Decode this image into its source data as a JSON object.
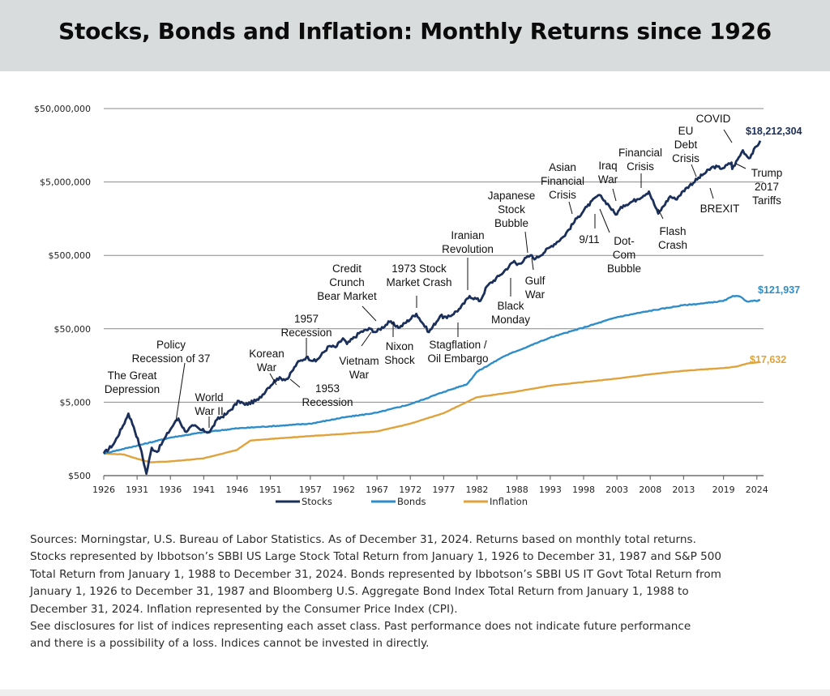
{
  "header": {
    "title": "Stocks, Bonds and Inflation: Monthly Returns since 1926"
  },
  "chart_data": {
    "type": "line",
    "scale": "log",
    "y_ticks": [
      500,
      5000,
      50000,
      500000,
      5000000,
      50000000
    ],
    "y_tick_labels": [
      "$500",
      "$5,000",
      "$50,000",
      "$500,000",
      "$5,000,000",
      "$50,000,000"
    ],
    "ylim": [
      500,
      50000000
    ],
    "x_ticks": [
      1926,
      1931,
      1936,
      1941,
      1946,
      1951,
      1957,
      1962,
      1967,
      1972,
      1977,
      1982,
      1988,
      1993,
      1998,
      2003,
      2008,
      2013,
      2019,
      2024
    ],
    "xlim": [
      1926,
      2025
    ],
    "grid": "horizontal",
    "legend_position": "bottom",
    "series": [
      {
        "name": "Stocks",
        "color": "#1b2f5b",
        "end_label": "$18,212,304",
        "points": [
          [
            1926,
            1000
          ],
          [
            1927.5,
            1350
          ],
          [
            1928.9,
            2400
          ],
          [
            1929.7,
            3500
          ],
          [
            1930.5,
            2300
          ],
          [
            1931.5,
            1200
          ],
          [
            1932.4,
            530
          ],
          [
            1933.2,
            1200
          ],
          [
            1934,
            1050
          ],
          [
            1935.3,
            1700
          ],
          [
            1936.6,
            2600
          ],
          [
            1937.2,
            3000
          ],
          [
            1938.2,
            2000
          ],
          [
            1939.5,
            2400
          ],
          [
            1940.5,
            2100
          ],
          [
            1941.9,
            1950
          ],
          [
            1943,
            2900
          ],
          [
            1944.5,
            3500
          ],
          [
            1946.3,
            5200
          ],
          [
            1947.2,
            4600
          ],
          [
            1949.2,
            5400
          ],
          [
            1950.5,
            7600
          ],
          [
            1952,
            10500
          ],
          [
            1953.6,
            10400
          ],
          [
            1955,
            17000
          ],
          [
            1956.4,
            20500
          ],
          [
            1957.8,
            18000
          ],
          [
            1959.8,
            29000
          ],
          [
            1960.8,
            28000
          ],
          [
            1961.9,
            37000
          ],
          [
            1962.5,
            31000
          ],
          [
            1964.5,
            45000
          ],
          [
            1966,
            50000
          ],
          [
            1966.8,
            45000
          ],
          [
            1968.9,
            62000
          ],
          [
            1970.4,
            52000
          ],
          [
            1972.9,
            80000
          ],
          [
            1974.8,
            45000
          ],
          [
            1976.5,
            75000
          ],
          [
            1977.5,
            70000
          ],
          [
            1979.5,
            95000
          ],
          [
            1980.9,
            140000
          ],
          [
            1982.5,
            120000
          ],
          [
            1983.5,
            190000
          ],
          [
            1985.5,
            270000
          ],
          [
            1987.6,
            420000
          ],
          [
            1988,
            370000
          ],
          [
            1990,
            500000
          ],
          [
            1990.8,
            450000
          ],
          [
            1993,
            650000
          ],
          [
            1995,
            900000
          ],
          [
            1997,
            1600000
          ],
          [
            1998.5,
            2300000
          ],
          [
            2000.2,
            3300000
          ],
          [
            2000.8,
            3000000
          ],
          [
            2001.8,
            2400000
          ],
          [
            2002.8,
            1800000
          ],
          [
            2004,
            2400000
          ],
          [
            2006,
            2900000
          ],
          [
            2007.8,
            3700000
          ],
          [
            2009.2,
            1850000
          ],
          [
            2011,
            3200000
          ],
          [
            2011.8,
            2900000
          ],
          [
            2013.5,
            4200000
          ],
          [
            2016,
            6400000
          ],
          [
            2017.5,
            8100000
          ],
          [
            2018.9,
            7700000
          ],
          [
            2020.2,
            9200000
          ],
          [
            2020.3,
            7500000
          ],
          [
            2021.9,
            13500000
          ],
          [
            2022.8,
            10500000
          ],
          [
            2024.5,
            18212304
          ]
        ]
      },
      {
        "name": "Bonds",
        "color": "#2e8dc8",
        "end_label": "$121,937",
        "points": [
          [
            1926,
            1000
          ],
          [
            1931,
            1280
          ],
          [
            1936,
            1650
          ],
          [
            1941,
            1950
          ],
          [
            1946,
            2200
          ],
          [
            1951,
            2350
          ],
          [
            1957,
            2550
          ],
          [
            1962,
            3100
          ],
          [
            1967,
            3600
          ],
          [
            1972,
            4700
          ],
          [
            1977,
            6900
          ],
          [
            1980.5,
            8800
          ],
          [
            1982,
            13000
          ],
          [
            1986,
            21000
          ],
          [
            1988,
            25000
          ],
          [
            1993,
            38000
          ],
          [
            1998,
            52000
          ],
          [
            2003,
            72000
          ],
          [
            2008,
            88000
          ],
          [
            2013,
            105000
          ],
          [
            2016,
            111000
          ],
          [
            2019,
            120000
          ],
          [
            2020.5,
            140000
          ],
          [
            2021.5,
            137000
          ],
          [
            2022.5,
            118000
          ],
          [
            2024.5,
            121937
          ]
        ]
      },
      {
        "name": "Inflation",
        "color": "#e0a33c",
        "end_label": "$17,632",
        "points": [
          [
            1926,
            1000
          ],
          [
            1929,
            970
          ],
          [
            1931,
            850
          ],
          [
            1933,
            760
          ],
          [
            1936,
            780
          ],
          [
            1941,
            860
          ],
          [
            1946,
            1120
          ],
          [
            1948,
            1500
          ],
          [
            1951,
            1580
          ],
          [
            1957,
            1730
          ],
          [
            1962,
            1850
          ],
          [
            1967,
            2000
          ],
          [
            1972,
            2550
          ],
          [
            1977,
            3550
          ],
          [
            1982,
            5850
          ],
          [
            1988,
            7000
          ],
          [
            1993,
            8400
          ],
          [
            1998,
            9400
          ],
          [
            2003,
            10500
          ],
          [
            2008,
            12000
          ],
          [
            2013,
            13400
          ],
          [
            2019,
            14600
          ],
          [
            2021,
            15300
          ],
          [
            2022.5,
            16800
          ],
          [
            2024.5,
            17632
          ]
        ]
      }
    ],
    "annotations": [
      {
        "text": [
          "The Great",
          "Depression"
        ],
        "year": 1929.9,
        "value": 3450,
        "marker": "none"
      },
      {
        "text": [
          "Policy",
          "Recession of 37"
        ],
        "year": 1937.2,
        "value": 3000,
        "marker": "line"
      },
      {
        "text": [
          "World",
          "War II"
        ],
        "year": 1941.9,
        "value": 1950,
        "marker": "line"
      },
      {
        "text": [
          "Korean",
          "War"
        ],
        "year": 1950.5,
        "value": 7600,
        "marker": "line"
      },
      {
        "text": [
          "1953",
          "Recession"
        ],
        "year": 1953.6,
        "value": 10400,
        "marker": "line"
      },
      {
        "text": [
          "1957",
          "Recession"
        ],
        "year": 1957.8,
        "value": 18000,
        "marker": "line"
      },
      {
        "text": [
          "Vietnam",
          "War"
        ],
        "year": 1964.5,
        "value": 45000,
        "marker": "line"
      },
      {
        "text": [
          "Credit",
          "Crunch",
          "Bear Market"
        ],
        "year": 1966.8,
        "value": 45000,
        "marker": "line"
      },
      {
        "text": [
          "Nixon",
          "Shock"
        ],
        "year": 1970.4,
        "value": 52000,
        "marker": "line"
      },
      {
        "text": [
          "1973 Stock",
          "Market Crash"
        ],
        "year": 1972.9,
        "value": 80000,
        "marker": "line"
      },
      {
        "text": [
          "Stagflation /",
          "Oil Embargo"
        ],
        "year": 1974.8,
        "value": 45000,
        "marker": "line"
      },
      {
        "text": [
          "Iranian",
          "Revolution"
        ],
        "year": 1979.5,
        "value": 95000,
        "marker": "line"
      },
      {
        "text": [
          "Black",
          "Monday"
        ],
        "year": 1987.6,
        "value": 420000,
        "marker": "line"
      },
      {
        "text": [
          "Japanese",
          "Stock",
          "Bubble"
        ],
        "year": 1990,
        "value": 500000,
        "marker": "line"
      },
      {
        "text": [
          "Gulf",
          "War"
        ],
        "year": 1990.8,
        "value": 450000,
        "marker": "line"
      },
      {
        "text": [
          "Asian",
          "Financial",
          "Crisis"
        ],
        "year": 1997,
        "value": 1600000,
        "marker": "line"
      },
      {
        "text": [
          "Iraq",
          "War"
        ],
        "year": 2003,
        "value": 2000000,
        "marker": "line"
      },
      {
        "text": [
          "9/11"
        ],
        "year": 2001.8,
        "value": 2400000,
        "marker": "line"
      },
      {
        "text": [
          "Dot-",
          "Com",
          "Bubble"
        ],
        "year": 2000.2,
        "value": 3300000,
        "marker": "line"
      },
      {
        "text": [
          "Financial",
          "Crisis"
        ],
        "year": 2007.8,
        "value": 3700000,
        "marker": "line"
      },
      {
        "text": [
          "Flash",
          "Crash"
        ],
        "year": 2010.4,
        "value": 2600000,
        "marker": "line"
      },
      {
        "text": [
          "EU",
          "Debt",
          "Crisis"
        ],
        "year": 2011.8,
        "value": 2900000,
        "marker": "line"
      },
      {
        "text": [
          "BREXIT"
        ],
        "year": 2016.5,
        "value": 6400000,
        "marker": "line"
      },
      {
        "text": [
          "COVID"
        ],
        "year": 2020.3,
        "value": 7500000,
        "marker": "line"
      },
      {
        "text": [
          "Trump",
          "2017",
          "Tariffs"
        ],
        "year": 2018.9,
        "value": 7700000,
        "marker": "line"
      }
    ]
  },
  "sources": {
    "lines": [
      "Sources: Morningstar, U.S. Bureau of Labor Statistics. As of December 31, 2024. Returns based on monthly total returns.",
      "Stocks represented by Ibbotson’s SBBI US Large Stock Total Return from January 1, 1926 to December 31, 1987 and S&P 500",
      "Total Return from January 1, 1988 to December 31, 2024. Bonds represented by Ibbotson’s SBBI US IT Govt Total Return from",
      "January 1, 1926 to December 31, 1987 and Bloomberg U.S. Aggregate Bond Index Total Return from January 1, 1988 to",
      "December 31, 2024. Inflation represented by the Consumer Price Index (CPI).",
      "See disclosures for list of indices representing each asset class. Past performance does not indicate future performance",
      "and there is a possibility of a loss. Indices cannot be invested in directly."
    ]
  }
}
